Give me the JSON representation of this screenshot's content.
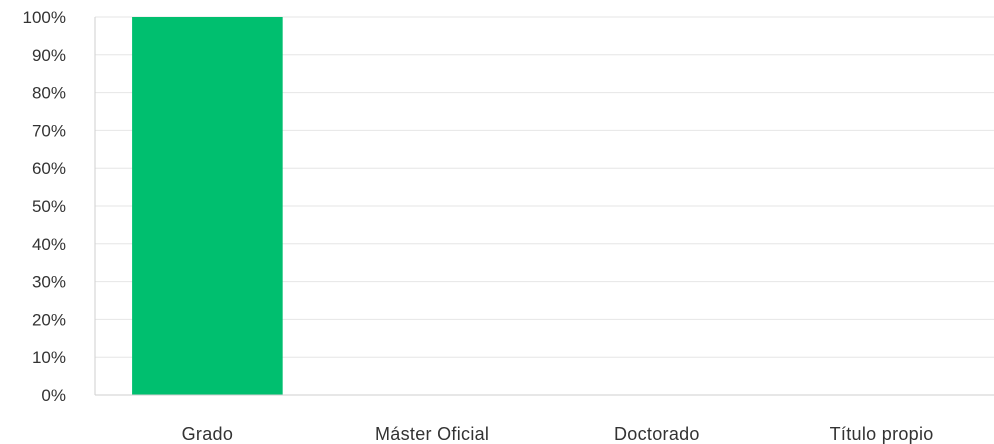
{
  "chart_data": {
    "type": "bar",
    "categories": [
      "Grado",
      "Máster Oficial",
      "Doctorado",
      "Título propio"
    ],
    "values": [
      100,
      0,
      0,
      0
    ],
    "y_tick_labels": [
      "0%",
      "10%",
      "20%",
      "30%",
      "40%",
      "50%",
      "60%",
      "70%",
      "80%",
      "90%",
      "100%"
    ],
    "ylim": [
      0,
      100
    ],
    "y_unit": "%",
    "grid": true,
    "legend": "none",
    "bar_color": "#00bf6f",
    "grid_color": "#e6e6e6",
    "axis_color": "#cfcfcf",
    "text_color": "#333333"
  }
}
